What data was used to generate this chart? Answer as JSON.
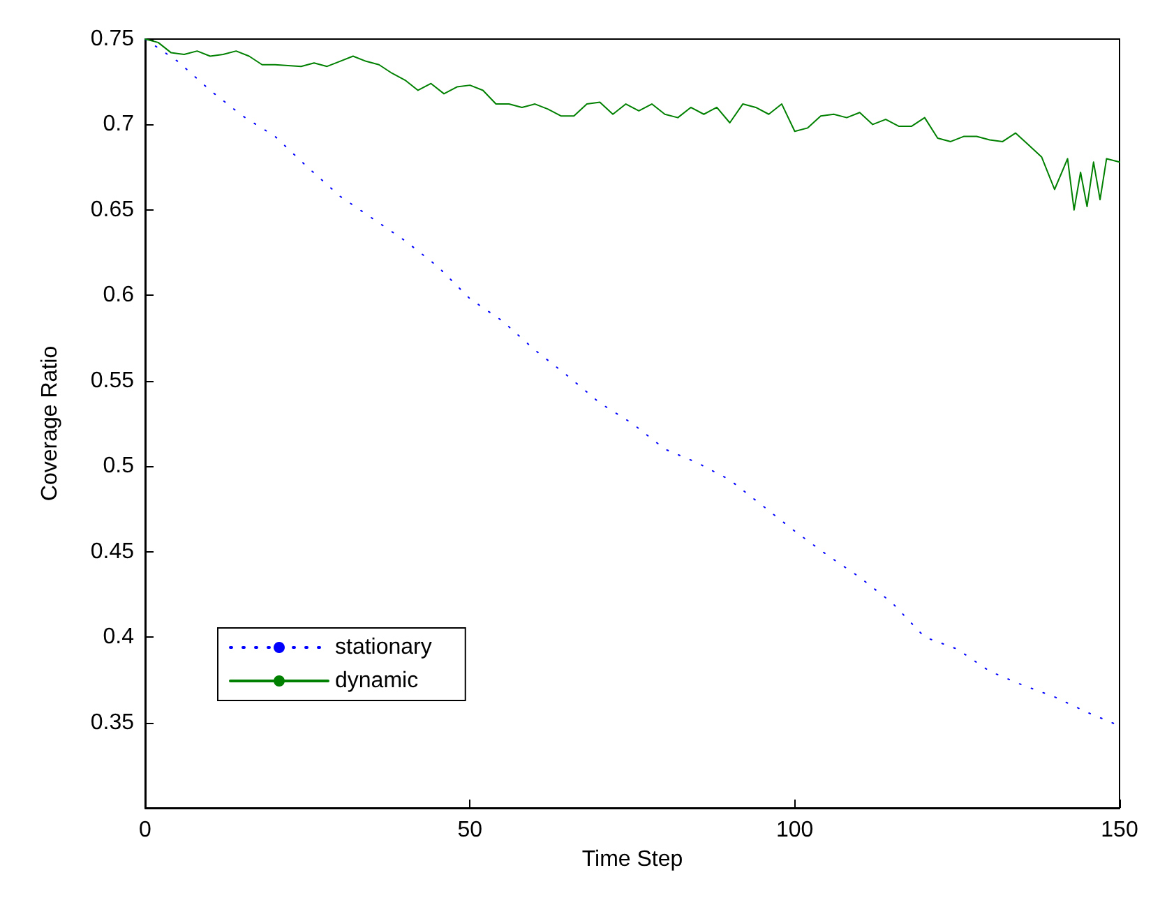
{
  "chart_data": {
    "type": "line",
    "xlabel": "Time Step",
    "ylabel": "Coverage Ratio",
    "xlim": [
      0,
      150
    ],
    "xticks": [
      0,
      50,
      100,
      150
    ],
    "ylim": [
      0.3,
      0.75
    ],
    "yticks": [
      0.35,
      0.4,
      0.45,
      0.5,
      0.55,
      0.6,
      0.65,
      0.7,
      0.75
    ],
    "grid": false,
    "legend": "bottom left",
    "series": [
      {
        "name": "stationary",
        "color": "#0000ff",
        "line_style": "dotted",
        "x": [
          0,
          5,
          10,
          15,
          20,
          25,
          30,
          35,
          40,
          45,
          50,
          55,
          60,
          65,
          70,
          75,
          80,
          85,
          90,
          95,
          100,
          105,
          110,
          115,
          120,
          125,
          130,
          135,
          140,
          145,
          150
        ],
        "values": [
          0.75,
          0.737,
          0.72,
          0.705,
          0.693,
          0.675,
          0.658,
          0.645,
          0.632,
          0.617,
          0.598,
          0.585,
          0.568,
          0.553,
          0.537,
          0.525,
          0.51,
          0.502,
          0.492,
          0.477,
          0.462,
          0.448,
          0.435,
          0.42,
          0.4,
          0.393,
          0.38,
          0.372,
          0.365,
          0.356,
          0.348
        ]
      },
      {
        "name": "dynamic",
        "color": "#008000",
        "line_style": "solid",
        "x": [
          0,
          2,
          4,
          6,
          8,
          10,
          12,
          14,
          16,
          18,
          20,
          24,
          26,
          28,
          30,
          32,
          34,
          36,
          38,
          40,
          42,
          44,
          46,
          48,
          50,
          52,
          54,
          56,
          58,
          60,
          62,
          64,
          66,
          68,
          70,
          72,
          74,
          76,
          78,
          80,
          82,
          84,
          86,
          88,
          90,
          92,
          94,
          96,
          98,
          100,
          102,
          104,
          106,
          108,
          110,
          112,
          114,
          116,
          118,
          120,
          122,
          124,
          126,
          128,
          130,
          132,
          134,
          136,
          138,
          140,
          142,
          143,
          144,
          145,
          146,
          147,
          148,
          150
        ],
        "values": [
          0.75,
          0.748,
          0.742,
          0.741,
          0.743,
          0.74,
          0.741,
          0.743,
          0.74,
          0.735,
          0.735,
          0.734,
          0.736,
          0.734,
          0.737,
          0.74,
          0.737,
          0.735,
          0.73,
          0.726,
          0.72,
          0.724,
          0.718,
          0.722,
          0.723,
          0.72,
          0.712,
          0.712,
          0.71,
          0.712,
          0.709,
          0.705,
          0.705,
          0.712,
          0.713,
          0.706,
          0.712,
          0.708,
          0.712,
          0.706,
          0.704,
          0.71,
          0.706,
          0.71,
          0.701,
          0.712,
          0.71,
          0.706,
          0.712,
          0.696,
          0.698,
          0.705,
          0.706,
          0.704,
          0.707,
          0.7,
          0.703,
          0.699,
          0.699,
          0.704,
          0.692,
          0.69,
          0.693,
          0.693,
          0.691,
          0.69,
          0.695,
          0.688,
          0.681,
          0.662,
          0.68,
          0.65,
          0.672,
          0.652,
          0.678,
          0.656,
          0.68,
          0.678
        ]
      }
    ]
  }
}
